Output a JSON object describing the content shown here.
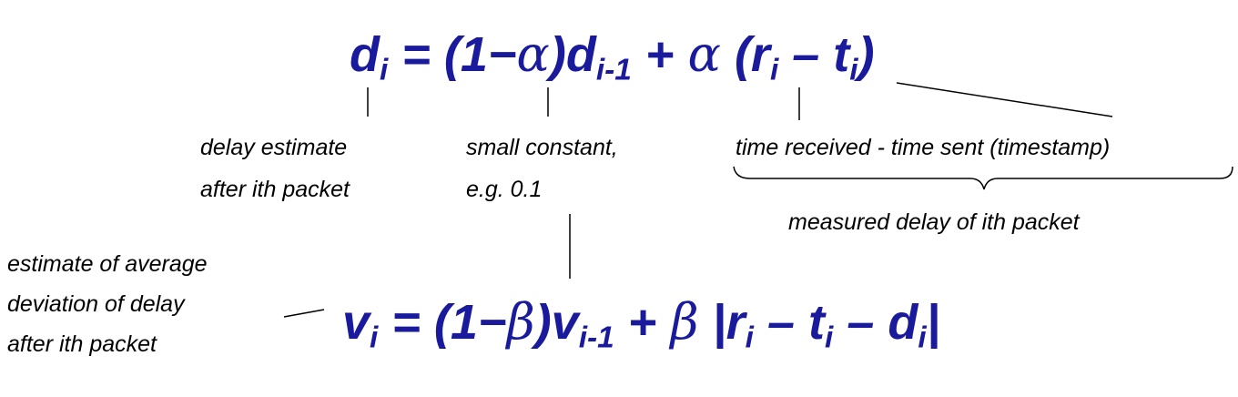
{
  "equation1": {
    "d": "d",
    "i": "i",
    "eq": " = (1",
    "minus": "−",
    "alpha": "α",
    "close": ")d",
    "im1": "i-1",
    "plus": " + ",
    "alpha2": "α",
    "open": " (r",
    "i2": "i",
    "minus2": " – t",
    "i3": "i",
    "close2": ")"
  },
  "equation2": {
    "v": "v",
    "i": "i",
    "eq": " = (1",
    "minus": "−",
    "beta": "β",
    "close": ")v",
    "im1": "i-1",
    "plus": " + ",
    "beta2": "β",
    "open": " |r",
    "i2": "i",
    "minus2": " – t",
    "i3": "i",
    "minus3": " – d",
    "i4": "i",
    "close2": "|"
  },
  "annotations": {
    "delay_estimate_line1": "delay estimate",
    "delay_estimate_line2": "after ith packet",
    "small_constant_line1": "small constant,",
    "small_constant_line2": "e.g. 0.1",
    "time_received": "time received  -  time sent (timestamp)",
    "measured_delay": "measured delay of ith packet",
    "deviation_line1": "estimate of average",
    "deviation_line2": "deviation of delay",
    "deviation_line3": "after ith packet"
  },
  "colors": {
    "equation": "#1a1a9c",
    "annotation": "#000000"
  }
}
